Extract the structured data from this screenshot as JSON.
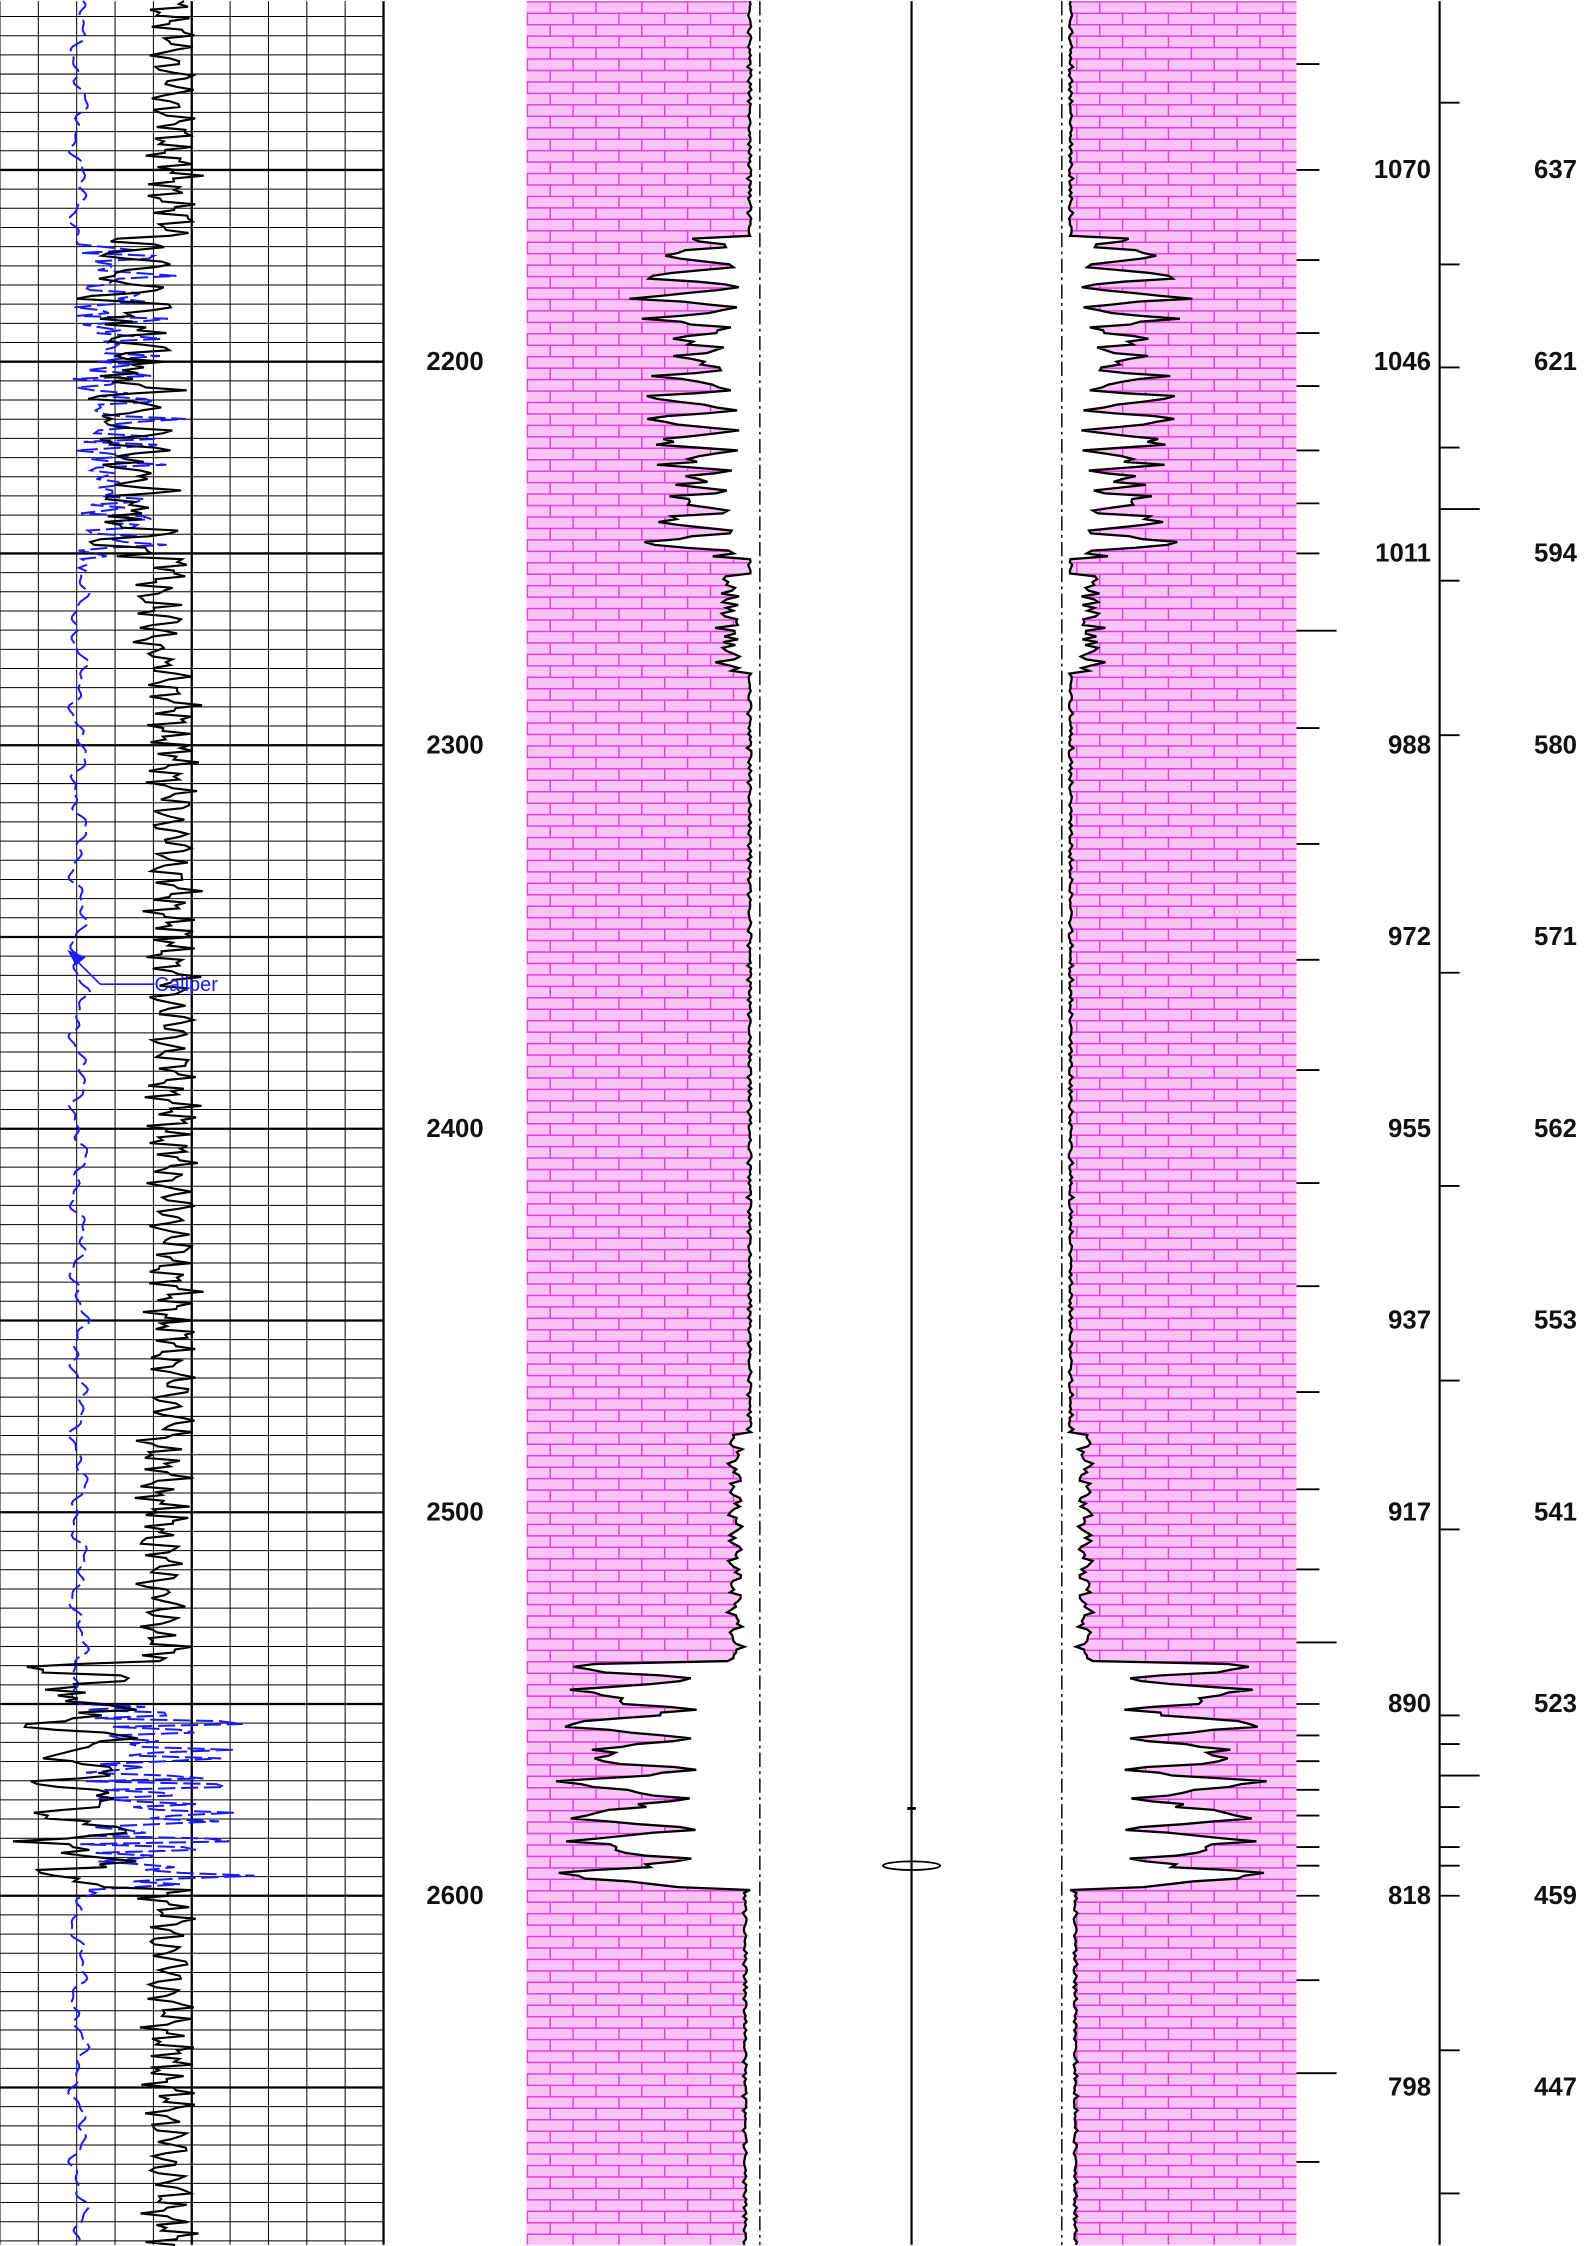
{
  "depth_track": {
    "labels": [
      "2200",
      "2300",
      "2400",
      "2500",
      "2600"
    ]
  },
  "time_track": {
    "labels": [
      "1070",
      "1046",
      "1011",
      "988",
      "972",
      "955",
      "937",
      "917",
      "890",
      "818",
      "798"
    ]
  },
  "value_track": {
    "labels": [
      "637",
      "621",
      "594",
      "580",
      "571",
      "562",
      "553",
      "541",
      "523",
      "459",
      "447"
    ]
  },
  "annotation": "Caliper"
}
